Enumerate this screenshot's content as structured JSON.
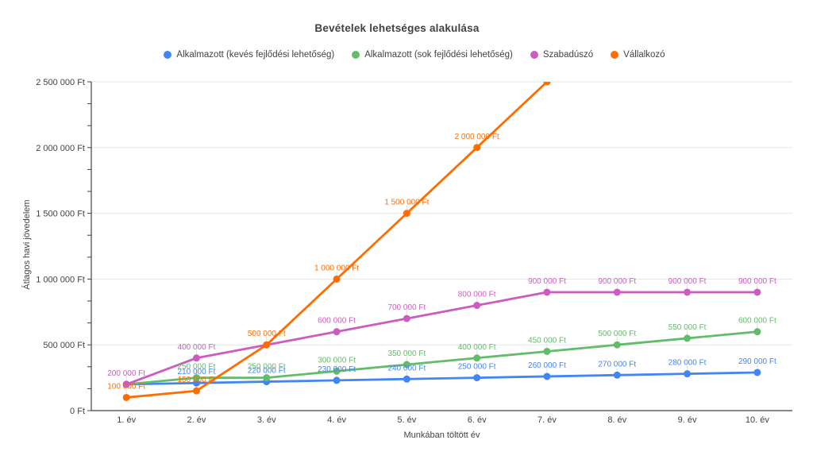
{
  "title": "Bevételek lehetséges alakulása",
  "colors": {
    "background": "#FFFFFF",
    "grid": "#E6E6E6",
    "axis": "#424242",
    "text": "#424242",
    "annotation_stem": "#E0E0E0"
  },
  "chart_data": {
    "type": "line",
    "title": "Bevételek lehetséges alakulása",
    "xlabel": "Munkában töltött év",
    "ylabel": "Átlagos havi jövedelem",
    "categories": [
      "1. év",
      "2. év",
      "3. év",
      "4. év",
      "5. év",
      "6. év",
      "7. év",
      "8. év",
      "9. év",
      "10. év"
    ],
    "ylim": [
      0,
      2500000
    ],
    "y_ticks": [
      {
        "value": 0,
        "label": "0 Ft"
      },
      {
        "value": 500000,
        "label": "500 000 Ft"
      },
      {
        "value": 1000000,
        "label": "1 000 000 Ft"
      },
      {
        "value": 1500000,
        "label": "1 500 000 Ft"
      },
      {
        "value": 2000000,
        "label": "2 000 000 Ft"
      },
      {
        "value": 2500000,
        "label": "2 500 000 Ft"
      }
    ],
    "y_minor_divisions": 3,
    "grid": "horizontal-major",
    "legend_position": "top",
    "series": [
      {
        "name": "Alkalmazott (kevés fejlődési lehetőség)",
        "color": "#4285F4",
        "values": [
          200000,
          210000,
          220000,
          230000,
          240000,
          250000,
          260000,
          270000,
          280000,
          290000
        ],
        "point_labels": [
          "",
          "210 000 Ft",
          "220 000 Ft",
          "230 000 Ft",
          "240 000 Ft",
          "250 000 Ft",
          "260 000 Ft",
          "270 000 Ft",
          "280 000 Ft",
          "290 000 Ft"
        ]
      },
      {
        "name": "Alkalmazott (sok fejlődési lehetőség)",
        "color": "#63BC6A",
        "values": [
          200000,
          250000,
          250000,
          300000,
          350000,
          400000,
          450000,
          500000,
          550000,
          600000
        ],
        "point_labels": [
          "",
          "250 000 Ft",
          "250 000 Ft",
          "300 000 Ft",
          "350 000 Ft",
          "400 000 Ft",
          "450 000 Ft",
          "500 000 Ft",
          "550 000 Ft",
          "600 000 Ft"
        ]
      },
      {
        "name": "Szabadúszó",
        "color": "#CD5CC2",
        "values": [
          200000,
          400000,
          500000,
          600000,
          700000,
          800000,
          900000,
          900000,
          900000,
          900000
        ],
        "point_labels": [
          "200 000 Ft",
          "400 000 Ft",
          "",
          "600 000 Ft",
          "700 000 Ft",
          "800 000 Ft",
          "900 000 Ft",
          "900 000 Ft",
          "900 000 Ft",
          "900 000 Ft"
        ]
      },
      {
        "name": "Vállalkozó",
        "color": "#FF6D01",
        "values": [
          100000,
          150000,
          500000,
          1000000,
          1500000,
          2000000,
          2500000,
          null,
          null,
          null
        ],
        "point_labels": [
          "100 000 Ft",
          "150 000 Ft",
          "500 000 Ft",
          "1 000 000 Ft",
          "1 500 000 Ft",
          "2 000 000 Ft",
          "",
          "",
          "",
          ""
        ]
      }
    ]
  }
}
